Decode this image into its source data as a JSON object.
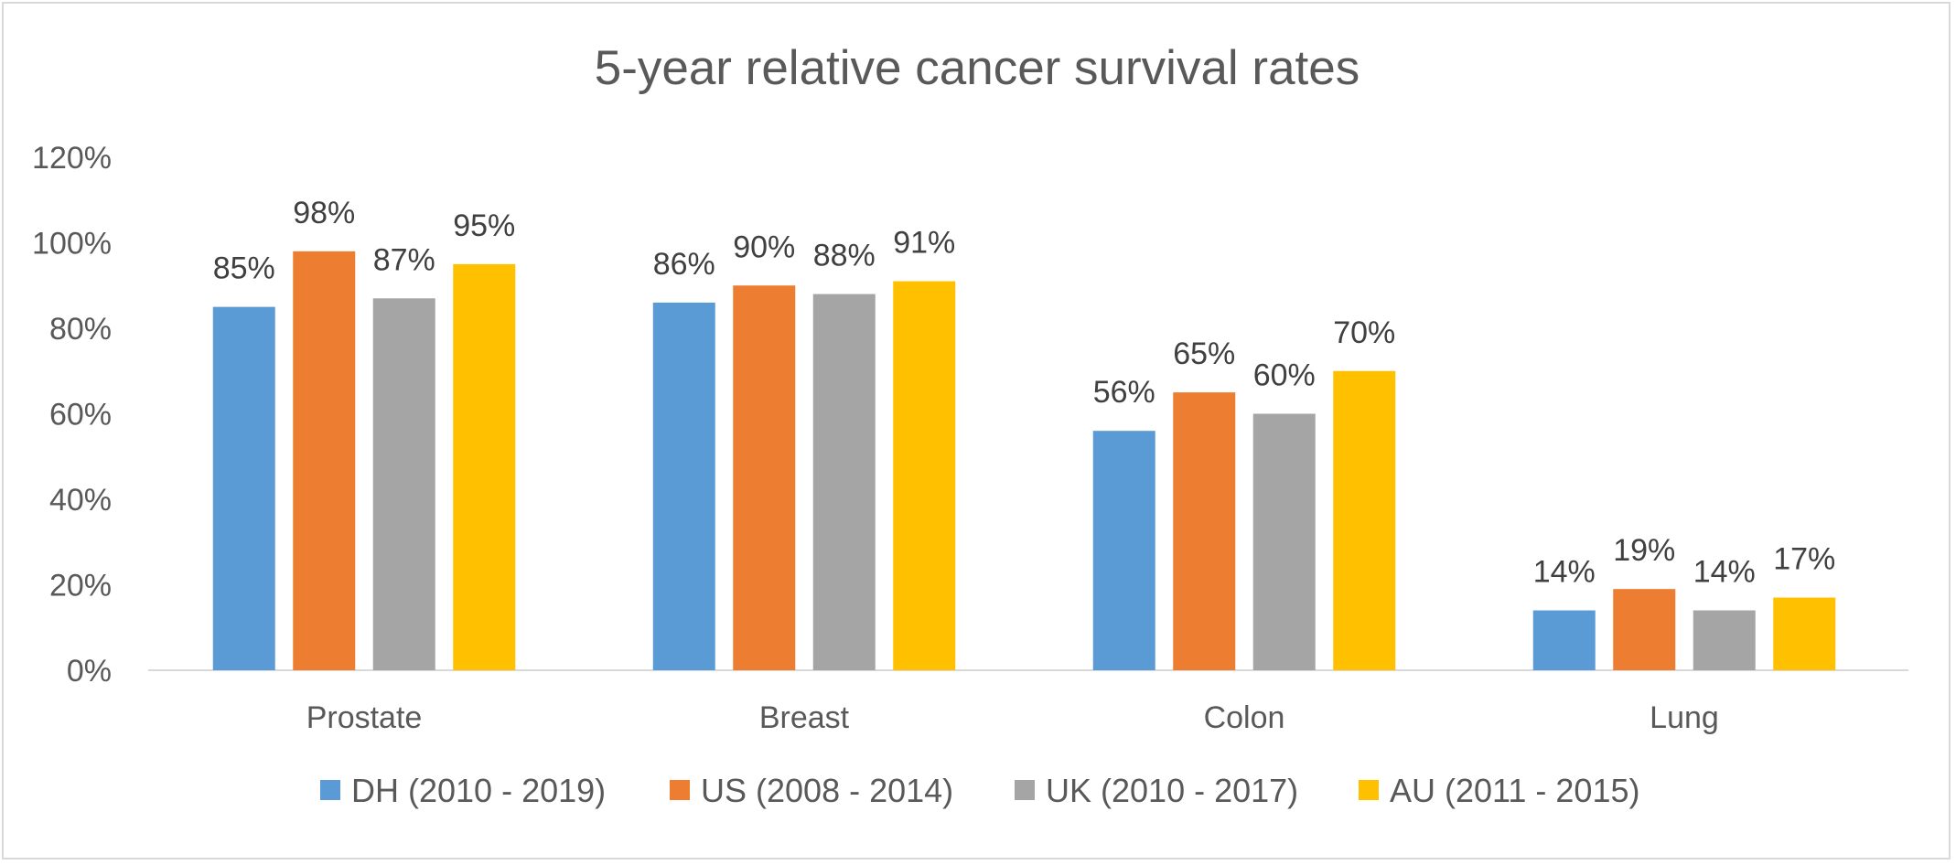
{
  "chart_data": {
    "type": "bar",
    "title": "5-year relative cancer survival rates",
    "xlabel": "",
    "ylabel": "",
    "categories": [
      "Prostate",
      "Breast",
      "Colon",
      "Lung"
    ],
    "series": [
      {
        "name": "DH (2010 - 2019)",
        "color": "#5B9BD5",
        "values": [
          85,
          86,
          56,
          14
        ],
        "labels": [
          "85%",
          "86%",
          "56%",
          "14%"
        ]
      },
      {
        "name": "US (2008 - 2014)",
        "color": "#ED7D31",
        "values": [
          98,
          90,
          65,
          19
        ],
        "labels": [
          "98%",
          "90%",
          "65%",
          "19%"
        ]
      },
      {
        "name": "UK (2010 - 2017)",
        "color": "#A5A5A5",
        "values": [
          87,
          88,
          60,
          14
        ],
        "labels": [
          "87%",
          "88%",
          "60%",
          "14%"
        ]
      },
      {
        "name": "AU (2011 - 2015)",
        "color": "#FFC000",
        "values": [
          95,
          91,
          70,
          17
        ],
        "labels": [
          "95%",
          "91%",
          "70%",
          "17%"
        ]
      }
    ],
    "ylim": [
      0,
      120
    ],
    "yticks": [
      0,
      20,
      40,
      60,
      80,
      100,
      120
    ],
    "ytick_labels": [
      "0%",
      "20%",
      "40%",
      "60%",
      "80%",
      "100%",
      "120%"
    ],
    "grid": false,
    "legend_position": "bottom",
    "axis_color": "#D9D9D9"
  }
}
